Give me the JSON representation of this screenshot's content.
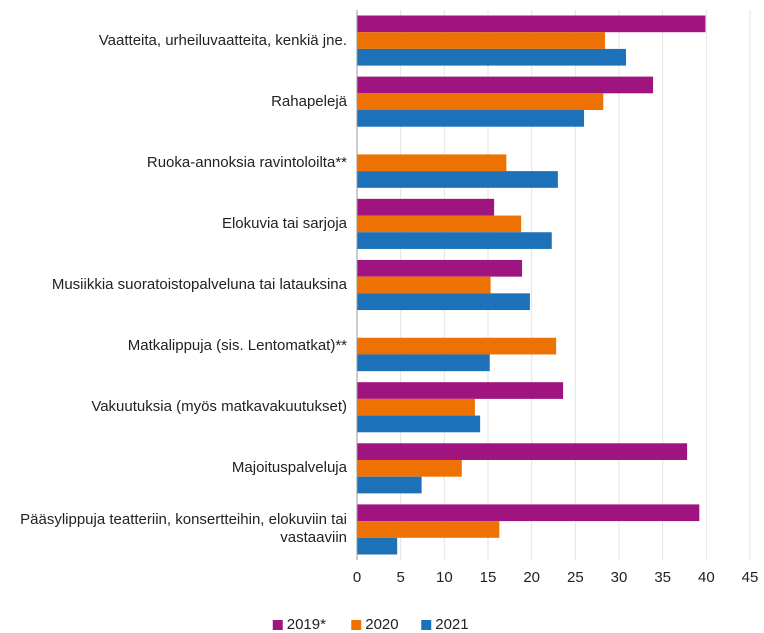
{
  "chart_data": {
    "type": "hbar",
    "categories": [
      "Vaatteita, urheiluvaatteita, kenkiä jne.",
      "Rahapelejä",
      "Ruoka-annoksia ravintoloilta**",
      "Elokuvia tai sarjoja",
      "Musiikkia suoratoistopalveluna tai latauksina",
      "Matkalippuja (sis. Lentomatkat)**",
      "Vakuutuksia (myös matkavakuutukset)",
      "Majoituspalveluja",
      "Pääsylippuja teatteriin, konsertteihin, elokuviin tai vastaaviin"
    ],
    "series": [
      {
        "name": "2019*",
        "color": "#a0147f",
        "values": [
          39.9,
          33.9,
          null,
          15.7,
          18.9,
          null,
          23.6,
          37.8,
          39.2
        ]
      },
      {
        "name": "2020",
        "color": "#ee7203",
        "values": [
          28.4,
          28.2,
          17.1,
          18.8,
          15.3,
          22.8,
          13.5,
          12.0,
          16.3
        ]
      },
      {
        "name": "2021",
        "color": "#1d71b8",
        "values": [
          30.8,
          26.0,
          23.0,
          22.3,
          19.8,
          15.2,
          14.1,
          7.4,
          4.6
        ]
      }
    ],
    "xlim": [
      0,
      45
    ],
    "xticks": [
      0,
      5,
      10,
      15,
      20,
      25,
      30,
      35,
      40,
      45
    ],
    "grid": true,
    "legend": "bottom"
  }
}
